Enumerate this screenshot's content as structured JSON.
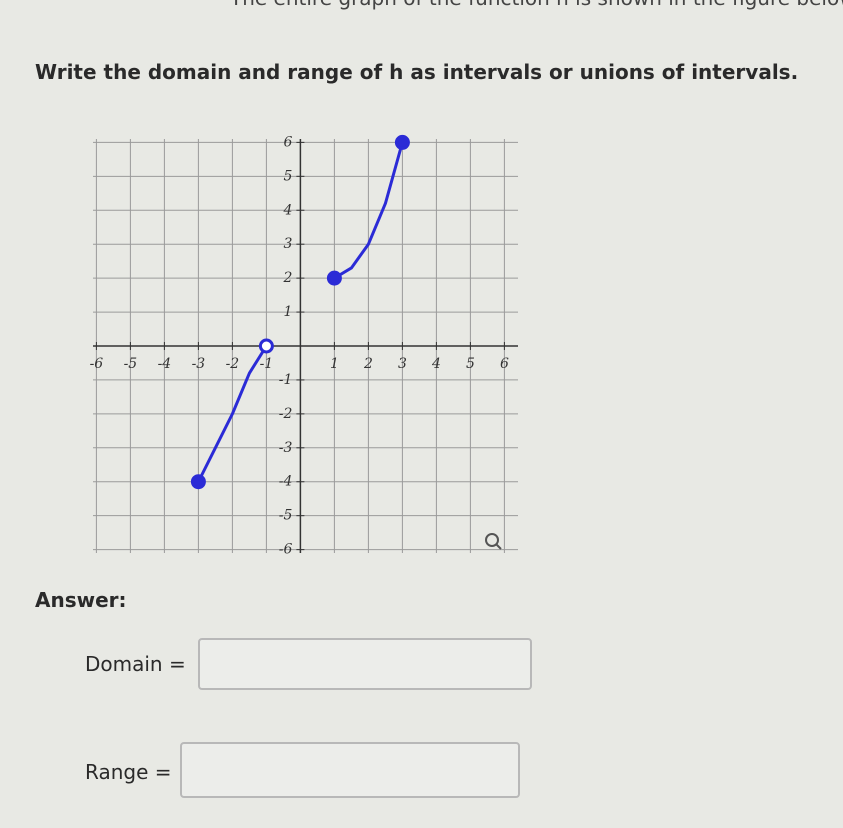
{
  "header": {
    "text": "The entire graph of the function h is shown in the figure below."
  },
  "question": {
    "text": "Write the domain and range of h as intervals or unions of intervals."
  },
  "chart_data": {
    "type": "line",
    "xlim": [
      -6.1,
      6.4
    ],
    "ylim": [
      -6.1,
      6.1
    ],
    "xticks": [
      -6,
      -5,
      -4,
      -3,
      -2,
      -1,
      1,
      2,
      3,
      4,
      5,
      6
    ],
    "yticks": [
      -6,
      -5,
      -4,
      -3,
      -2,
      -1,
      1,
      2,
      3,
      4,
      5,
      6
    ],
    "grid": true,
    "series": [
      {
        "color": "#2b2bd6",
        "x": [
          -3,
          -2.5,
          -2,
          -1.5,
          -1
        ],
        "values": [
          -4,
          -3,
          -2,
          -0.8,
          0
        ],
        "endpoints": {
          "start": "closed",
          "end": "open"
        }
      },
      {
        "color": "#2b2bd6",
        "x": [
          1,
          1.5,
          2,
          2.5,
          3
        ],
        "values": [
          2,
          2.3,
          3,
          4.2,
          6
        ],
        "endpoints": {
          "start": "closed",
          "end": "closed"
        }
      }
    ]
  },
  "answer": {
    "title": "Answer:",
    "domain_label": "Domain =",
    "range_label": "Range ="
  }
}
